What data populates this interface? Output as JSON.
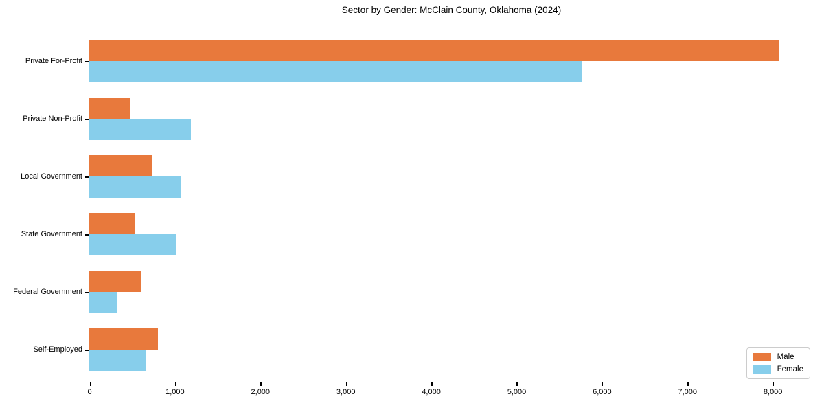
{
  "chart_data": {
    "type": "bar",
    "orientation": "horizontal",
    "title": "Sector by Gender: McClain County, Oklahoma (2024)",
    "categories": [
      "Private For-Profit",
      "Private Non-Profit",
      "Local Government",
      "State Government",
      "Federal Government",
      "Self-Employed"
    ],
    "series": [
      {
        "name": "Male",
        "color": "#E8793C",
        "values": [
          8070,
          475,
          730,
          530,
          600,
          800
        ]
      },
      {
        "name": "Female",
        "color": "#87CEEB",
        "values": [
          5760,
          1190,
          1075,
          1010,
          330,
          660
        ]
      }
    ],
    "xlabel": "",
    "ylabel": "",
    "xlim": [
      0,
      8473
    ],
    "x_ticks": [
      0,
      1000,
      2000,
      3000,
      4000,
      5000,
      6000,
      7000,
      8000
    ],
    "x_tick_labels": [
      "0",
      "1,000",
      "2,000",
      "3,000",
      "4,000",
      "5,000",
      "6,000",
      "7,000",
      "8,000"
    ],
    "grid": false,
    "legend_position": "lower right"
  },
  "colors": {
    "male": "#E8793C",
    "female": "#87CEEB",
    "axis": "#000000",
    "legend_border": "#CCCCCC",
    "background": "#FFFFFF"
  }
}
